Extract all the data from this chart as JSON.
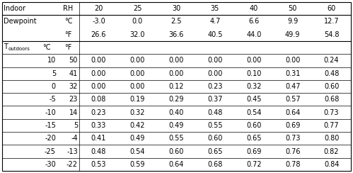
{
  "rh_values": [
    "20",
    "25",
    "30",
    "35",
    "40",
    "50",
    "60"
  ],
  "dewpoint_c": [
    "-3.0",
    "0.0",
    "2.5",
    "4.7",
    "6.6",
    "9.9",
    "12.7"
  ],
  "dewpoint_f": [
    "26.6",
    "32.0",
    "36.6",
    "40.5",
    "44.0",
    "49.9",
    "54.8"
  ],
  "t_outdoors_c": [
    "10",
    "5",
    "0",
    "-5",
    "-10",
    "-15",
    "-20",
    "-25",
    "-30"
  ],
  "t_outdoors_f": [
    "50",
    "41",
    "32",
    "23",
    "14",
    "5",
    "-4",
    "-13",
    "-22"
  ],
  "table_data": [
    [
      "0.00",
      "0.00",
      "0.00",
      "0.00",
      "0.00",
      "0.00",
      "0.24"
    ],
    [
      "0.00",
      "0.00",
      "0.00",
      "0.00",
      "0.10",
      "0.31",
      "0.48"
    ],
    [
      "0.00",
      "0.00",
      "0.12",
      "0.23",
      "0.32",
      "0.47",
      "0.60"
    ],
    [
      "0.08",
      "0.19",
      "0.29",
      "0.37",
      "0.45",
      "0.57",
      "0.68"
    ],
    [
      "0.23",
      "0.32",
      "0.40",
      "0.48",
      "0.54",
      "0.64",
      "0.73"
    ],
    [
      "0.33",
      "0.42",
      "0.49",
      "0.55",
      "0.60",
      "0.69",
      "0.77"
    ],
    [
      "0.41",
      "0.49",
      "0.55",
      "0.60",
      "0.65",
      "0.73",
      "0.80"
    ],
    [
      "0.48",
      "0.54",
      "0.60",
      "0.65",
      "0.69",
      "0.76",
      "0.82"
    ],
    [
      "0.53",
      "0.59",
      "0.64",
      "0.68",
      "0.72",
      "0.78",
      "0.84"
    ]
  ],
  "bg_color": "#ffffff",
  "text_color": "#000000",
  "border_color": "#000000",
  "font_size": 7.0,
  "sub_font_size": 5.0
}
